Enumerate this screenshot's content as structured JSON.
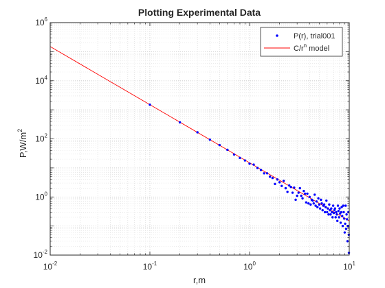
{
  "chart_data": {
    "type": "scatter",
    "title": "Plotting Experimental Data",
    "xlabel": "r,m",
    "ylabel_base": "P,W/m",
    "ylabel_sup": "2",
    "xscale": "log",
    "yscale": "log",
    "xlim": [
      0.01,
      10
    ],
    "ylim": [
      0.01,
      1000000
    ],
    "grid": true,
    "minor_grid": true,
    "legend_position": "top-right",
    "x_ticks": [
      {
        "base": "10",
        "exp": "-2",
        "value": 0.01
      },
      {
        "base": "10",
        "exp": "-1",
        "value": 0.1
      },
      {
        "base": "10",
        "exp": "0",
        "value": 1
      },
      {
        "base": "10",
        "exp": "1",
        "value": 10
      }
    ],
    "y_ticks": [
      {
        "base": "10",
        "exp": "-2",
        "value": 0.01
      },
      {
        "base": "10",
        "exp": "0",
        "value": 1
      },
      {
        "base": "10",
        "exp": "2",
        "value": 100
      },
      {
        "base": "10",
        "exp": "4",
        "value": 10000
      },
      {
        "base": "10",
        "exp": "6",
        "value": 1000000
      }
    ],
    "series": [
      {
        "name": "P(r), trial001",
        "kind": "markers",
        "color": "#0000ff",
        "x": [
          0.1,
          0.2,
          0.3,
          0.4,
          0.5,
          0.6,
          0.7,
          0.8,
          0.9,
          1.0,
          1.1,
          1.2,
          1.3,
          1.4,
          1.5,
          1.6,
          1.7,
          1.8,
          1.9,
          2.0,
          2.1,
          2.2,
          2.3,
          2.4,
          2.5,
          2.6,
          2.7,
          2.8,
          2.9,
          3.0,
          3.1,
          3.2,
          3.3,
          3.4,
          3.5,
          3.6,
          3.7,
          3.8,
          3.9,
          4.0,
          4.1,
          4.2,
          4.3,
          4.4,
          4.5,
          4.6,
          4.7,
          4.8,
          4.9,
          5.0,
          5.1,
          5.2,
          5.3,
          5.4,
          5.5,
          5.6,
          5.7,
          5.8,
          5.9,
          6.0,
          6.1,
          6.2,
          6.3,
          6.4,
          6.5,
          6.6,
          6.7,
          6.8,
          6.9,
          7.0,
          7.1,
          7.2,
          7.3,
          7.4,
          7.5,
          7.6,
          7.7,
          7.8,
          7.9,
          8.0,
          8.1,
          8.2,
          8.3,
          8.4,
          8.5,
          8.6,
          8.7,
          8.8,
          8.9,
          9.0,
          9.1,
          9.2,
          9.3,
          9.4,
          9.5,
          9.6,
          9.7,
          9.8,
          9.9,
          10.0
        ],
        "y": [
          1500,
          370,
          168,
          94,
          61,
          42,
          29,
          22,
          18,
          14,
          13,
          10,
          8.5,
          6.5,
          6.5,
          5.0,
          4.5,
          2.8,
          4.0,
          3.2,
          2.4,
          3.6,
          2.0,
          1.5,
          2.5,
          2.2,
          1.4,
          2.1,
          0.8,
          1.1,
          1.4,
          2.0,
          1.1,
          0.9,
          1.6,
          1.3,
          0.65,
          1.3,
          0.6,
          1.0,
          0.55,
          0.8,
          0.75,
          0.6,
          1.2,
          0.5,
          0.7,
          0.45,
          0.9,
          0.55,
          0.4,
          0.8,
          0.6,
          0.35,
          0.5,
          0.55,
          0.3,
          0.45,
          0.75,
          0.3,
          0.4,
          0.25,
          0.55,
          0.35,
          0.25,
          0.4,
          0.3,
          0.2,
          0.5,
          0.28,
          0.35,
          0.4,
          0.2,
          0.3,
          0.25,
          0.15,
          0.5,
          0.33,
          0.2,
          0.4,
          0.27,
          0.13,
          0.3,
          0.45,
          0.22,
          0.1,
          0.5,
          0.3,
          0.18,
          0.06,
          0.12,
          0.5,
          0.08,
          0.25,
          0.17,
          0.03,
          0.1,
          0.3,
          0.05,
          0.012
        ]
      },
      {
        "name": "C/r",
        "name_sup": "n",
        "name_suffix": " model",
        "kind": "line",
        "color": "#ff0000",
        "x": [
          0.01,
          0.1,
          1,
          10
        ],
        "y": [
          150000,
          1500,
          15,
          0.15
        ]
      }
    ]
  }
}
